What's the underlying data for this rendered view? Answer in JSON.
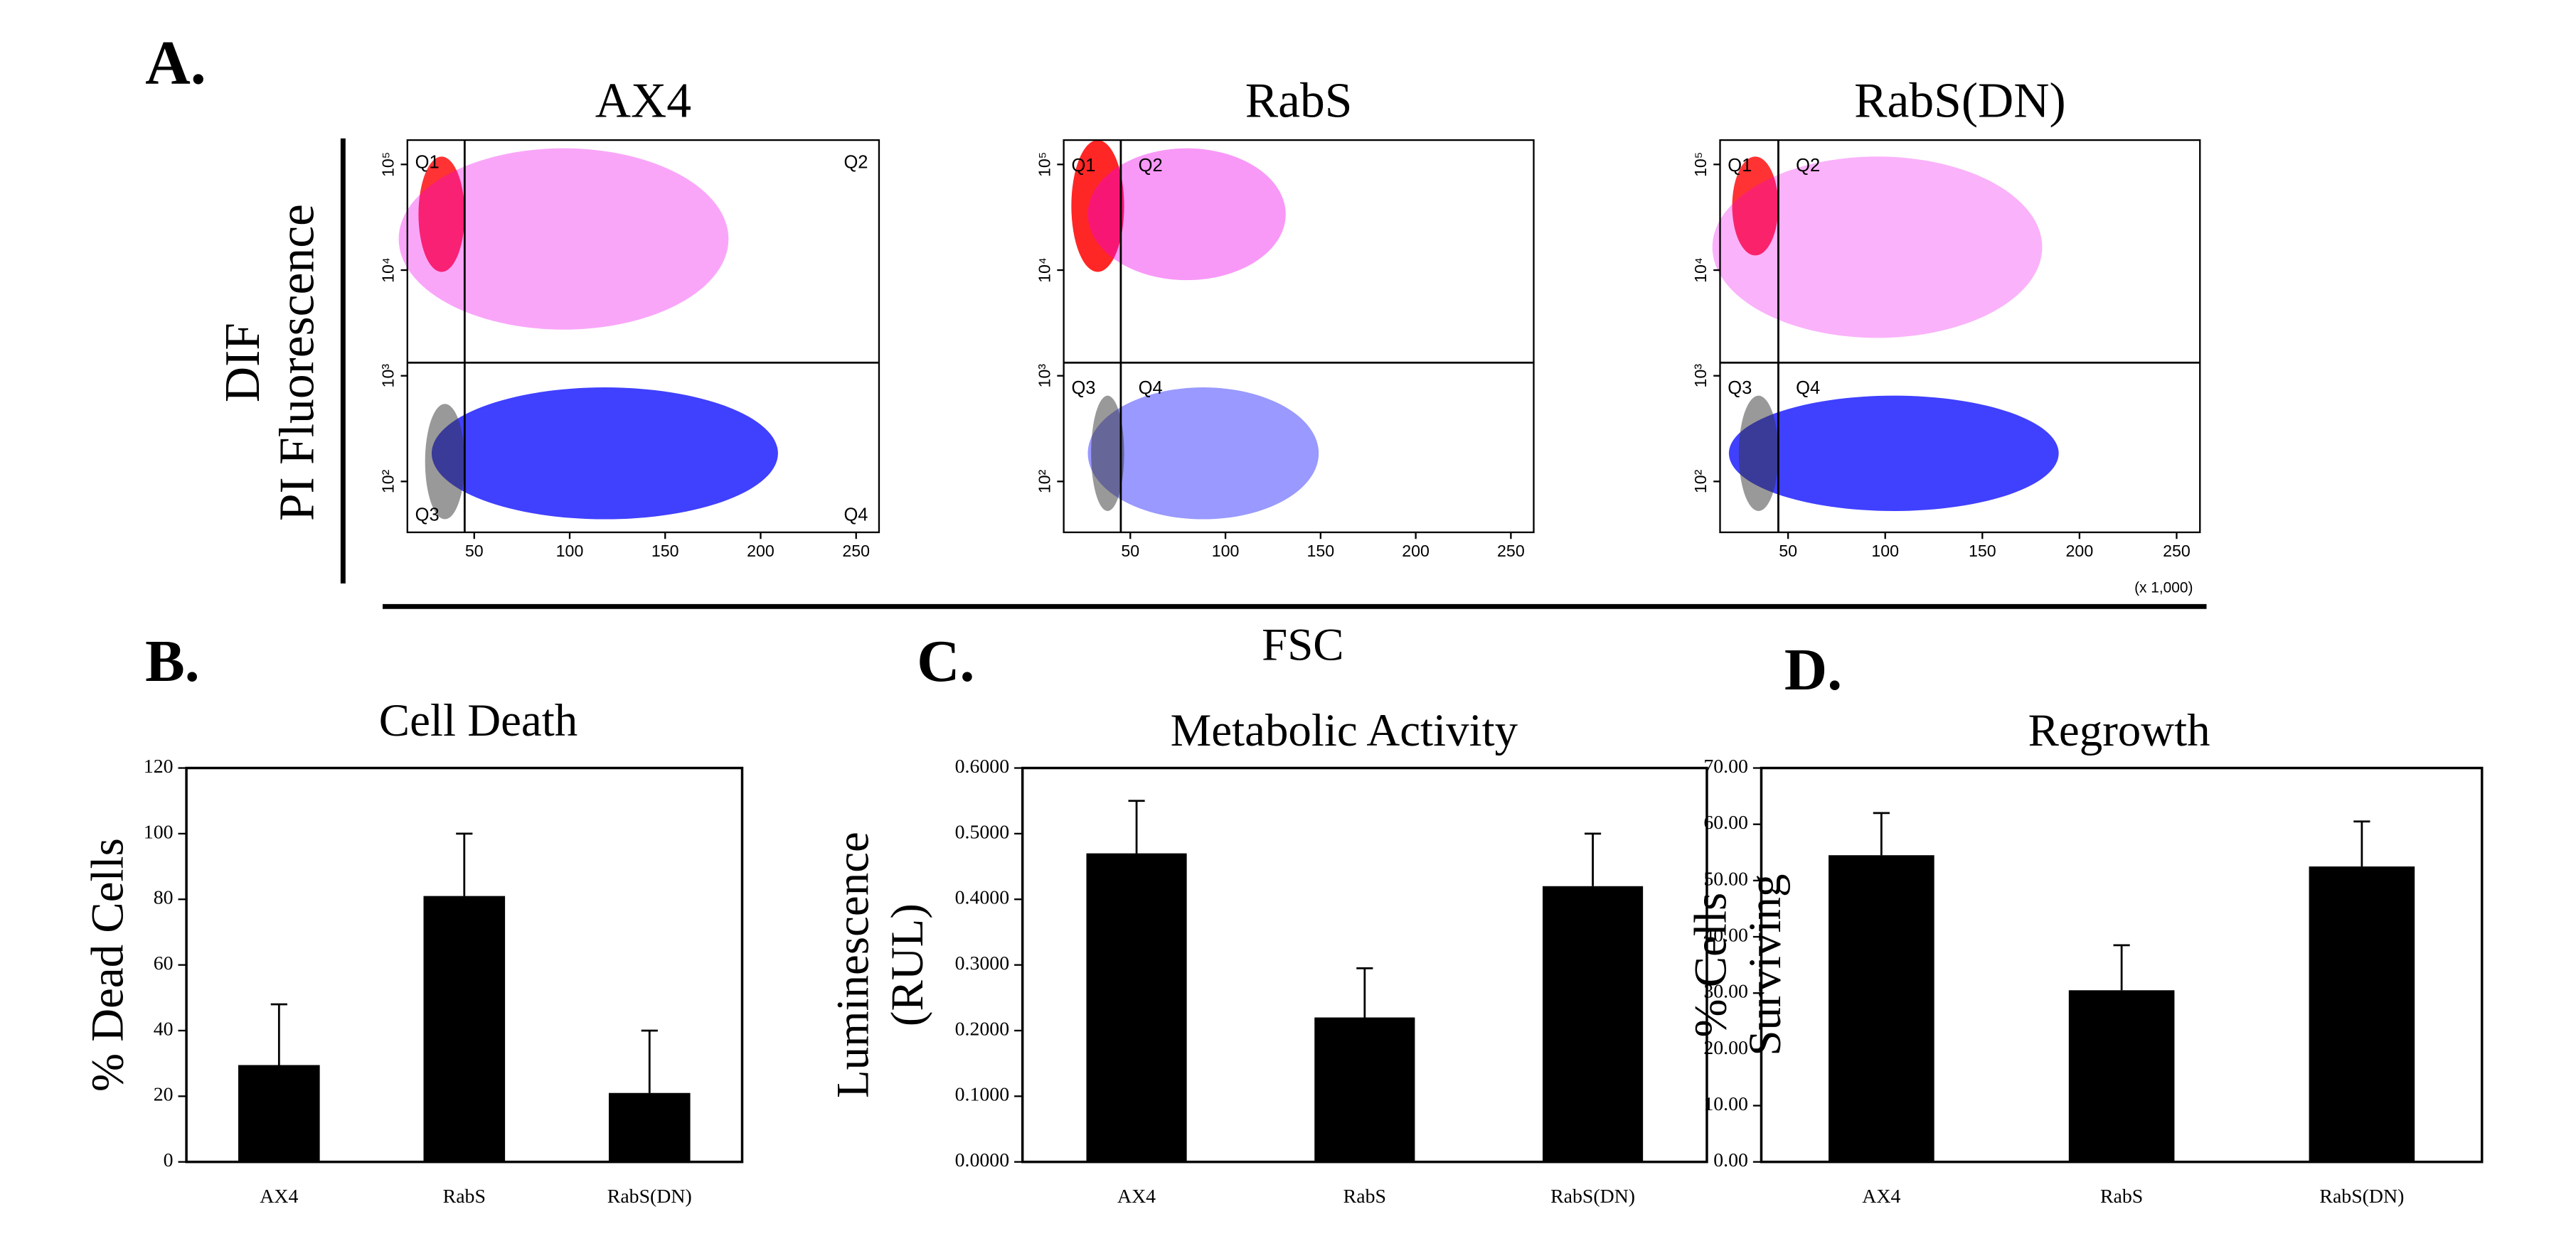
{
  "figure": {
    "panel_a": "A.",
    "panel_b": "B.",
    "panel_c": "C.",
    "panel_d": "D.",
    "y_label_top": "DIF",
    "y_label": "PI Fluorescence",
    "x_label": "FSC",
    "x_unit": "(x 1,000)"
  },
  "chart_data": [
    {
      "type": "flow",
      "title": "AX4",
      "quadrants": [
        "Q1",
        "Q2",
        "Q3",
        "Q4"
      ],
      "xlim": [
        15,
        262
      ],
      "xticks": [
        50,
        100,
        150,
        200,
        250
      ],
      "ylim": [
        33,
        170000
      ],
      "log_y": true,
      "yticks": [
        {
          "value": 100,
          "label": "10²"
        },
        {
          "value": 1000,
          "label": "10³"
        },
        {
          "value": 10000,
          "label": "10⁴"
        },
        {
          "value": 100000,
          "label": "10⁵"
        }
      ],
      "gates": {
        "x": 45,
        "y": 1330
      }
    },
    {
      "type": "flow",
      "title": "RabS",
      "quadrants": [
        "Q1",
        "Q2",
        "Q3",
        "Q4"
      ],
      "xlim": [
        15,
        262
      ],
      "xticks": [
        50,
        100,
        150,
        200,
        250
      ],
      "ylim": [
        33,
        170000
      ],
      "log_y": true,
      "yticks": [
        {
          "value": 100,
          "label": "10²"
        },
        {
          "value": 1000,
          "label": "10³"
        },
        {
          "value": 10000,
          "label": "10⁴"
        },
        {
          "value": 100000,
          "label": "10⁵"
        }
      ],
      "gates": {
        "x": 45,
        "y": 1330
      }
    },
    {
      "type": "flow",
      "title": "RabS(DN)",
      "quadrants": [
        "Q1",
        "Q2",
        "Q3",
        "Q4"
      ],
      "xlim": [
        15,
        262
      ],
      "xticks": [
        50,
        100,
        150,
        200,
        250
      ],
      "ylim": [
        33,
        170000
      ],
      "log_y": true,
      "yticks": [
        {
          "value": 100,
          "label": "10²"
        },
        {
          "value": 1000,
          "label": "10³"
        },
        {
          "value": 10000,
          "label": "10⁴"
        },
        {
          "value": 100000,
          "label": "10⁵"
        }
      ],
      "gates": {
        "x": 45,
        "y": 1330
      }
    },
    {
      "type": "bar",
      "title": "Cell Death",
      "ylabel": [
        "% Dead Cells"
      ],
      "categories": [
        "AX4",
        "RabS",
        "RabS(DN)"
      ],
      "values": [
        29.5,
        81,
        21
      ],
      "errors": [
        18.5,
        19,
        19
      ],
      "color": "#000000",
      "ylim": [
        0,
        120
      ],
      "yticks": [
        0,
        20,
        40,
        60,
        80,
        100,
        120
      ]
    },
    {
      "type": "bar",
      "title": "Metabolic Activity",
      "ylabel": [
        "Luminescence",
        "(RUL)"
      ],
      "categories": [
        "AX4",
        "RabS",
        "RabS(DN)"
      ],
      "values": [
        0.47,
        0.22,
        0.42
      ],
      "errors": [
        0.08,
        0.075,
        0.08
      ],
      "color": "#000000",
      "ylim": [
        0,
        0.6
      ],
      "yticks": [
        {
          "value": 0,
          "label": "0.0000"
        },
        {
          "value": 0.1,
          "label": "0.1000"
        },
        {
          "value": 0.2,
          "label": "0.2000"
        },
        {
          "value": 0.3,
          "label": "0.3000"
        },
        {
          "value": 0.4,
          "label": "0.4000"
        },
        {
          "value": 0.5,
          "label": "0.5000"
        },
        {
          "value": 0.6,
          "label": "0.6000"
        }
      ]
    },
    {
      "type": "bar",
      "title": "Regrowth",
      "ylabel": [
        "% Cells",
        "Surviving"
      ],
      "categories": [
        "AX4",
        "RabS",
        "RabS(DN)"
      ],
      "values": [
        54.5,
        30.5,
        52.5
      ],
      "errors": [
        7.5,
        8,
        8
      ],
      "color": "#000000",
      "ylim": [
        0,
        70
      ],
      "yticks": [
        {
          "value": 0,
          "label": "0.00"
        },
        {
          "value": 10,
          "label": "10.00"
        },
        {
          "value": 20,
          "label": "20.00"
        },
        {
          "value": 30,
          "label": "30.00"
        },
        {
          "value": 40,
          "label": "40.00"
        },
        {
          "value": 50,
          "label": "50.00"
        },
        {
          "value": 60,
          "label": "60.00"
        },
        {
          "value": 70,
          "label": "70.00"
        }
      ]
    }
  ]
}
